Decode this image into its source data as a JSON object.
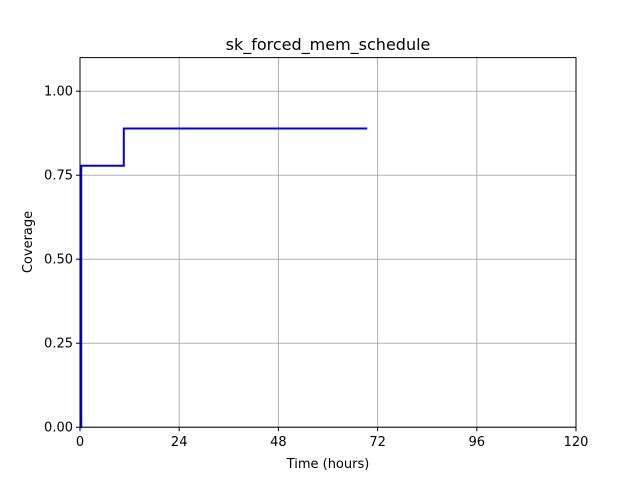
{
  "chart_data": {
    "type": "line",
    "title": "sk_forced_mem_schedule",
    "xlabel": "Time (hours)",
    "ylabel": "Coverage",
    "xlim": [
      0,
      120
    ],
    "ylim": [
      0,
      1.1
    ],
    "xticks": [
      0,
      24,
      48,
      72,
      96,
      120
    ],
    "xtick_labels": [
      "0",
      "24",
      "48",
      "72",
      "96",
      "120"
    ],
    "yticks": [
      0,
      0.25,
      0.5,
      0.75,
      1.0
    ],
    "ytick_labels": [
      "0.00",
      "0.25",
      "0.50",
      "0.75",
      "1.00"
    ],
    "grid": true,
    "line_style": "step",
    "series": [
      {
        "color": "#0000ee",
        "x": [
          0,
          0.3,
          10.5,
          10.6,
          69.5
        ],
        "y": [
          0,
          0.778,
          0.778,
          0.889,
          0.889
        ]
      }
    ]
  }
}
